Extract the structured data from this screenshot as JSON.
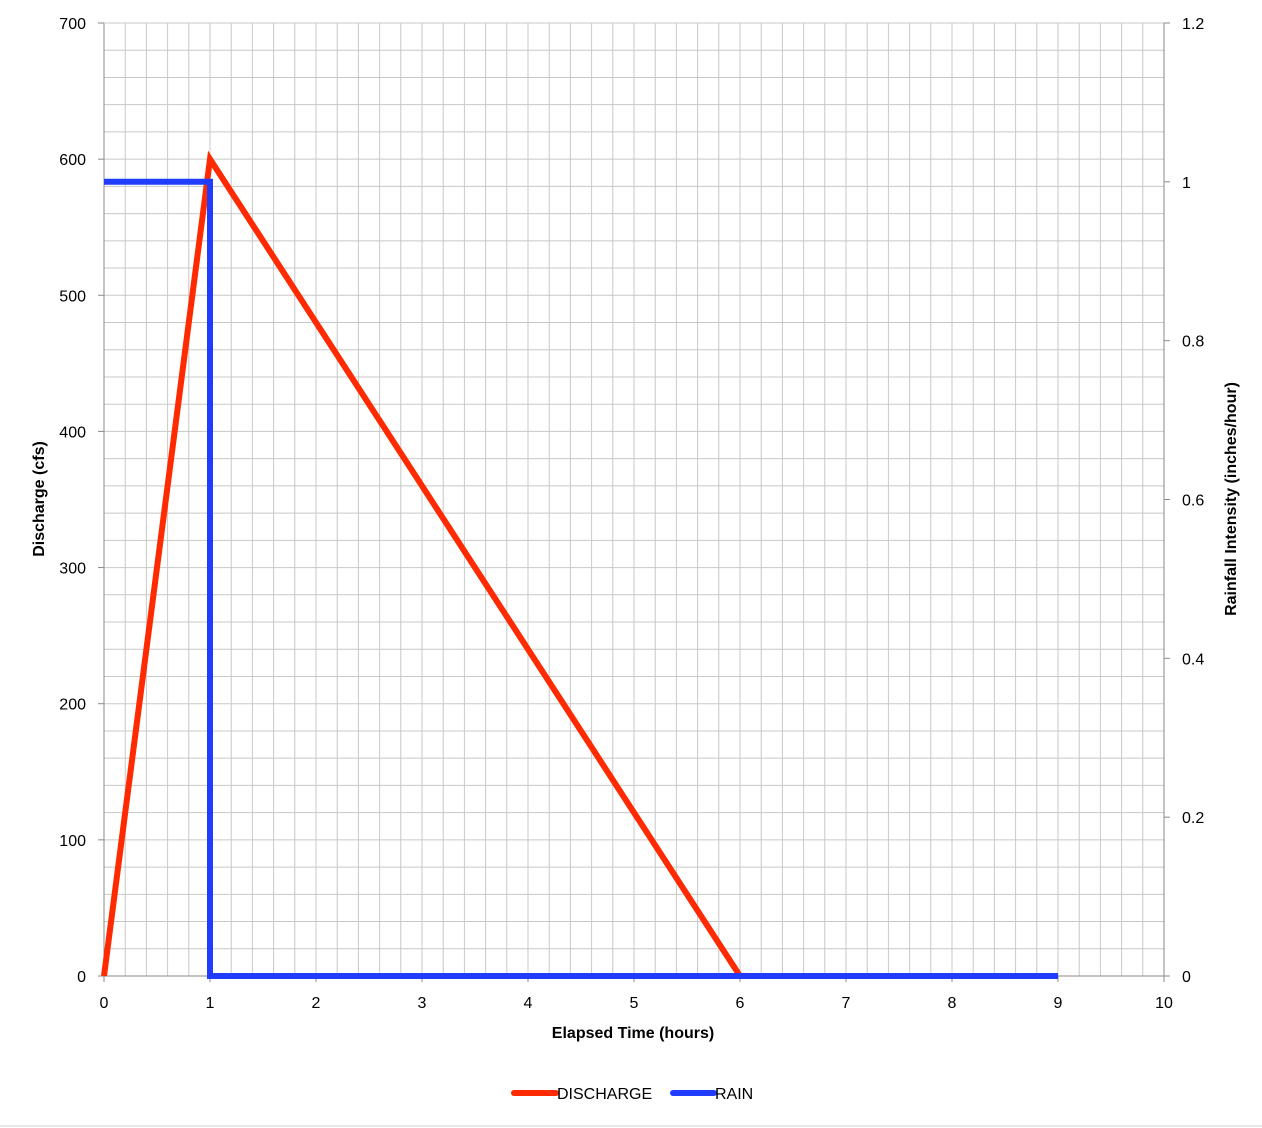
{
  "chart_data": {
    "type": "line",
    "xlabel": "Elapsed Time (hours)",
    "ylabel": "Discharge (cfs)",
    "y2label": "Rainfall Intensity (inches/hour)",
    "xlim": [
      0,
      10
    ],
    "ylim": [
      0,
      700
    ],
    "y2lim": [
      0,
      1.2
    ],
    "x_ticks": [
      "0",
      "1",
      "2",
      "3",
      "4",
      "5",
      "6",
      "7",
      "8",
      "9",
      "10"
    ],
    "y_ticks": [
      "0",
      "100",
      "200",
      "300",
      "400",
      "500",
      "600",
      "700"
    ],
    "y2_ticks": [
      "0",
      "0.2",
      "0.4",
      "0.6",
      "0.8",
      "1",
      "1.2"
    ],
    "grid": true,
    "legend_position": "bottom",
    "series": [
      {
        "name": "DISCHARGE",
        "axis": "left",
        "color": "#ff2a00",
        "x": [
          0,
          1,
          6
        ],
        "y": [
          0,
          600,
          0
        ]
      },
      {
        "name": "RAIN",
        "axis": "right",
        "color": "#1f3cff",
        "x": [
          0,
          1,
          1,
          9
        ],
        "y": [
          1,
          1,
          0,
          0
        ]
      }
    ]
  }
}
